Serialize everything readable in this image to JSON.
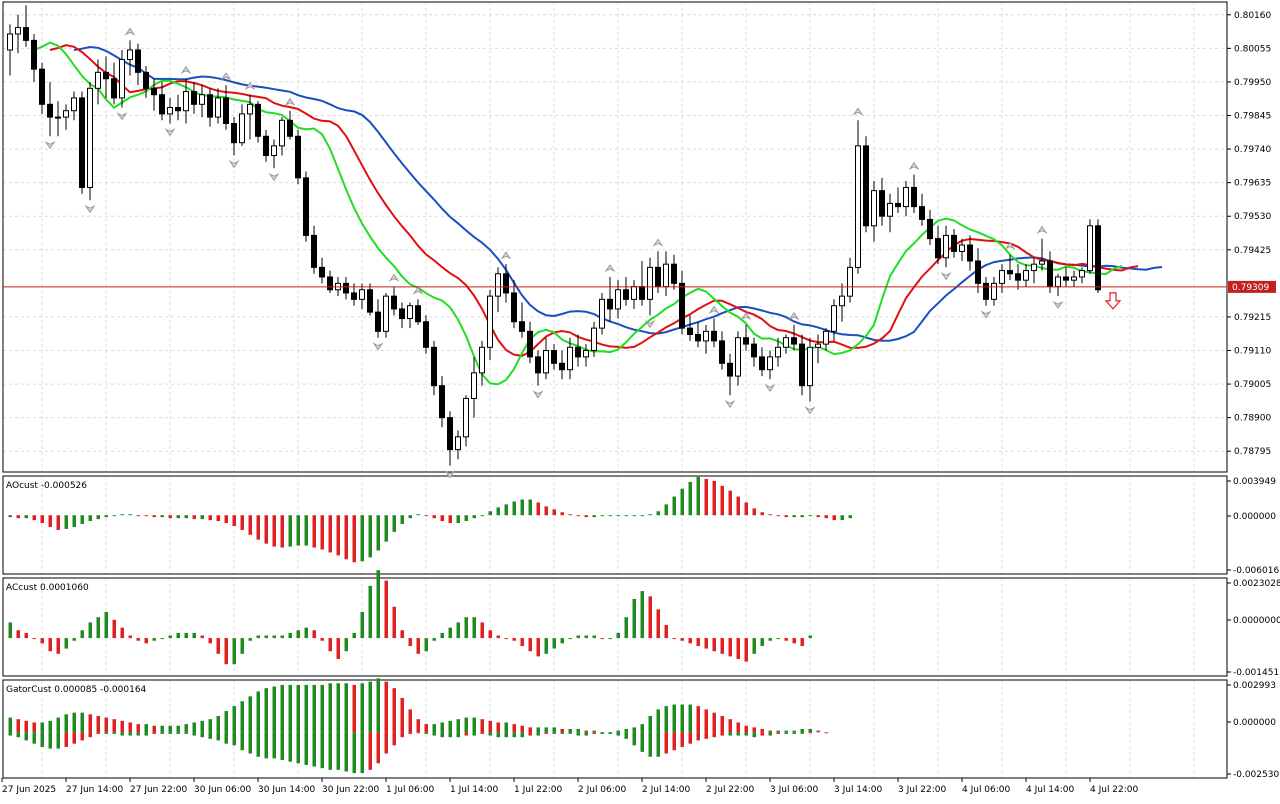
{
  "main": {
    "price_ticks": [
      "0.80160",
      "0.80055",
      "0.79950",
      "0.79845",
      "0.79740",
      "0.79635",
      "0.79530",
      "0.79425",
      "0.79215",
      "0.79110",
      "0.79005",
      "0.78900",
      "0.78795"
    ],
    "current_price_label": "0.79309",
    "signal_arrow": "down-arrow-icon"
  },
  "time_labels": [
    "27 Jun 2025",
    "27 Jun 14:00",
    "27 Jun 22:00",
    "30 Jun 06:00",
    "30 Jun 14:00",
    "30 Jun 22:00",
    "1 Jul 06:00",
    "1 Jul 14:00",
    "1 Jul 22:00",
    "2 Jul 06:00",
    "2 Jul 14:00",
    "2 Jul 22:00",
    "3 Jul 06:00",
    "3 Jul 14:00",
    "3 Jul 22:00",
    "4 Jul 06:00",
    "4 Jul 14:00",
    "4 Jul 22:00"
  ],
  "indicators": [
    {
      "label": "AOcust -0.000526",
      "ticks": [
        "0.003949",
        "0.000000",
        "-0.006016"
      ]
    },
    {
      "label": "ACcust 0.0001060",
      "ticks": [
        "0.0023028",
        "0.0000000",
        "-0.0014511"
      ]
    },
    {
      "label": "GatorCust 0.000085 -0.000164",
      "ticks": [
        "0.002993",
        "0.000000",
        "-0.002530"
      ]
    }
  ],
  "colors": {
    "grid": "#dcdcdc",
    "border": "#000000",
    "bull": "#ffffff",
    "bear": "#000000",
    "jaw": "#1a4fbf",
    "teeth": "#e01010",
    "lips": "#22dd22",
    "up_bar": "#1f8a1f",
    "down_bar": "#e02020",
    "price_line": "#c02020",
    "fractal": "#999999"
  },
  "chart_data": {
    "type": "candlestick",
    "instrument_digits": 5,
    "current_price": 0.79309,
    "price_range": [
      0.7873,
      0.802
    ],
    "candles_ohlc": [
      [
        0.8005,
        0.8013,
        0.7997,
        0.801
      ],
      [
        0.801,
        0.8016,
        0.8004,
        0.8012
      ],
      [
        0.8012,
        0.8019,
        0.8006,
        0.8008
      ],
      [
        0.8008,
        0.801,
        0.7995,
        0.7999
      ],
      [
        0.7999,
        0.8001,
        0.7985,
        0.7988
      ],
      [
        0.7988,
        0.7995,
        0.7978,
        0.7984
      ],
      [
        0.7984,
        0.7989,
        0.7978,
        0.7984
      ],
      [
        0.7984,
        0.7988,
        0.798,
        0.7986
      ],
      [
        0.7986,
        0.7992,
        0.7983,
        0.799
      ],
      [
        0.799,
        0.7992,
        0.796,
        0.7962
      ],
      [
        0.7962,
        0.7995,
        0.7958,
        0.7993
      ],
      [
        0.7993,
        0.8002,
        0.7988,
        0.7998
      ],
      [
        0.7998,
        0.8003,
        0.799,
        0.7996
      ],
      [
        0.7996,
        0.8001,
        0.7988,
        0.799
      ],
      [
        0.799,
        0.8005,
        0.7987,
        0.8002
      ],
      [
        0.8002,
        0.8008,
        0.7997,
        0.8005
      ],
      [
        0.8005,
        0.8007,
        0.7994,
        0.7998
      ],
      [
        0.7998,
        0.8,
        0.799,
        0.7993
      ],
      [
        0.7993,
        0.7996,
        0.7986,
        0.7991
      ],
      [
        0.7991,
        0.7995,
        0.7983,
        0.7985
      ],
      [
        0.7985,
        0.799,
        0.7982,
        0.7987
      ],
      [
        0.7987,
        0.7991,
        0.7983,
        0.7986
      ],
      [
        0.7986,
        0.7996,
        0.7982,
        0.7992
      ],
      [
        0.7992,
        0.7995,
        0.7985,
        0.7988
      ],
      [
        0.7988,
        0.7994,
        0.7984,
        0.7991
      ],
      [
        0.7991,
        0.7993,
        0.7981,
        0.7984
      ],
      [
        0.7984,
        0.7993,
        0.7982,
        0.799
      ],
      [
        0.799,
        0.7994,
        0.798,
        0.7982
      ],
      [
        0.7982,
        0.7984,
        0.7972,
        0.7976
      ],
      [
        0.7976,
        0.7988,
        0.7975,
        0.7985
      ],
      [
        0.7985,
        0.7991,
        0.7977,
        0.7988
      ],
      [
        0.7988,
        0.7989,
        0.7976,
        0.7978
      ],
      [
        0.7978,
        0.798,
        0.797,
        0.7972
      ],
      [
        0.7972,
        0.7977,
        0.7968,
        0.7975
      ],
      [
        0.7975,
        0.7984,
        0.7972,
        0.7983
      ],
      [
        0.7983,
        0.7986,
        0.7977,
        0.7978
      ],
      [
        0.7978,
        0.798,
        0.7963,
        0.7965
      ],
      [
        0.7965,
        0.7967,
        0.7945,
        0.7947
      ],
      [
        0.7947,
        0.795,
        0.7935,
        0.7937
      ],
      [
        0.7937,
        0.794,
        0.7932,
        0.7934
      ],
      [
        0.7934,
        0.7936,
        0.7929,
        0.793
      ],
      [
        0.793,
        0.7934,
        0.7928,
        0.7932
      ],
      [
        0.7932,
        0.7934,
        0.7927,
        0.7929
      ],
      [
        0.7929,
        0.7932,
        0.7925,
        0.7927
      ],
      [
        0.7927,
        0.7932,
        0.7924,
        0.793
      ],
      [
        0.793,
        0.7932,
        0.7922,
        0.7923
      ],
      [
        0.7923,
        0.7927,
        0.7915,
        0.7917
      ],
      [
        0.7917,
        0.7929,
        0.7915,
        0.7928
      ],
      [
        0.7928,
        0.7931,
        0.7922,
        0.7924
      ],
      [
        0.7924,
        0.7926,
        0.7918,
        0.7921
      ],
      [
        0.7921,
        0.7926,
        0.7918,
        0.7925
      ],
      [
        0.7925,
        0.7927,
        0.7919,
        0.792
      ],
      [
        0.792,
        0.7922,
        0.791,
        0.7912
      ],
      [
        0.7912,
        0.7914,
        0.7897,
        0.79
      ],
      [
        0.79,
        0.7903,
        0.7887,
        0.789
      ],
      [
        0.789,
        0.7892,
        0.7875,
        0.788
      ],
      [
        0.788,
        0.7886,
        0.7877,
        0.7884
      ],
      [
        0.7884,
        0.7897,
        0.7881,
        0.7896
      ],
      [
        0.7896,
        0.7909,
        0.789,
        0.7904
      ],
      [
        0.7904,
        0.7914,
        0.79,
        0.7912
      ],
      [
        0.7912,
        0.793,
        0.7908,
        0.7928
      ],
      [
        0.7928,
        0.7937,
        0.7923,
        0.7935
      ],
      [
        0.7935,
        0.7938,
        0.7926,
        0.7929
      ],
      [
        0.7929,
        0.7933,
        0.7918,
        0.792
      ],
      [
        0.792,
        0.7926,
        0.7915,
        0.7917
      ],
      [
        0.7917,
        0.792,
        0.7907,
        0.7909
      ],
      [
        0.7909,
        0.7911,
        0.79,
        0.7904
      ],
      [
        0.7904,
        0.7915,
        0.7902,
        0.7911
      ],
      [
        0.7911,
        0.7913,
        0.7905,
        0.7907
      ],
      [
        0.7907,
        0.7911,
        0.7902,
        0.7905
      ],
      [
        0.7905,
        0.7915,
        0.7902,
        0.7912
      ],
      [
        0.7912,
        0.7916,
        0.7906,
        0.7909
      ],
      [
        0.7909,
        0.7913,
        0.7906,
        0.7911
      ],
      [
        0.7911,
        0.792,
        0.7909,
        0.7918
      ],
      [
        0.7918,
        0.7929,
        0.7916,
        0.7927
      ],
      [
        0.7927,
        0.7934,
        0.792,
        0.7924
      ],
      [
        0.7924,
        0.7933,
        0.7921,
        0.793
      ],
      [
        0.793,
        0.7934,
        0.7925,
        0.7927
      ],
      [
        0.7927,
        0.7933,
        0.7924,
        0.7931
      ],
      [
        0.7931,
        0.7939,
        0.7925,
        0.7927
      ],
      [
        0.7927,
        0.794,
        0.7922,
        0.7937
      ],
      [
        0.7937,
        0.7942,
        0.7929,
        0.7931
      ],
      [
        0.7931,
        0.7942,
        0.7928,
        0.7938
      ],
      [
        0.7938,
        0.7941,
        0.793,
        0.7932
      ],
      [
        0.7932,
        0.7936,
        0.7916,
        0.7918
      ],
      [
        0.7918,
        0.7922,
        0.7914,
        0.7916
      ],
      [
        0.7916,
        0.792,
        0.7912,
        0.7914
      ],
      [
        0.7914,
        0.7919,
        0.791,
        0.7917
      ],
      [
        0.7917,
        0.7921,
        0.7912,
        0.7914
      ],
      [
        0.7914,
        0.7917,
        0.7905,
        0.7907
      ],
      [
        0.7907,
        0.791,
        0.7897,
        0.7903
      ],
      [
        0.7903,
        0.7917,
        0.79,
        0.7915
      ],
      [
        0.7915,
        0.7919,
        0.7911,
        0.7913
      ],
      [
        0.7913,
        0.7915,
        0.7906,
        0.7909
      ],
      [
        0.7909,
        0.7912,
        0.7903,
        0.7905
      ],
      [
        0.7905,
        0.7911,
        0.7902,
        0.7909
      ],
      [
        0.7909,
        0.7915,
        0.7906,
        0.7912
      ],
      [
        0.7912,
        0.7916,
        0.791,
        0.7915
      ],
      [
        0.7915,
        0.7919,
        0.7911,
        0.7913
      ],
      [
        0.7913,
        0.7916,
        0.7897,
        0.79
      ],
      [
        0.79,
        0.7915,
        0.7895,
        0.7912
      ],
      [
        0.7912,
        0.7916,
        0.7907,
        0.7913
      ],
      [
        0.7913,
        0.7918,
        0.7911,
        0.7917
      ],
      [
        0.7917,
        0.7927,
        0.7914,
        0.7925
      ],
      [
        0.7925,
        0.7932,
        0.792,
        0.7928
      ],
      [
        0.7928,
        0.794,
        0.7926,
        0.7937
      ],
      [
        0.7937,
        0.7983,
        0.7935,
        0.7975
      ],
      [
        0.7975,
        0.7978,
        0.7948,
        0.795
      ],
      [
        0.795,
        0.7964,
        0.7945,
        0.7961
      ],
      [
        0.7961,
        0.7965,
        0.795,
        0.7953
      ],
      [
        0.7953,
        0.796,
        0.7948,
        0.7957
      ],
      [
        0.7957,
        0.7962,
        0.7954,
        0.7956
      ],
      [
        0.7956,
        0.7964,
        0.7953,
        0.7962
      ],
      [
        0.7962,
        0.7966,
        0.7954,
        0.7956
      ],
      [
        0.7956,
        0.796,
        0.795,
        0.7952
      ],
      [
        0.7952,
        0.7955,
        0.7944,
        0.7946
      ],
      [
        0.7946,
        0.795,
        0.7938,
        0.794
      ],
      [
        0.794,
        0.795,
        0.7937,
        0.7947
      ],
      [
        0.7947,
        0.7949,
        0.794,
        0.7942
      ],
      [
        0.7942,
        0.7946,
        0.7939,
        0.7944
      ],
      [
        0.7944,
        0.7947,
        0.7936,
        0.7939
      ],
      [
        0.7939,
        0.7943,
        0.7929,
        0.7932
      ],
      [
        0.7932,
        0.7934,
        0.7925,
        0.7927
      ],
      [
        0.7927,
        0.7934,
        0.7925,
        0.7932
      ],
      [
        0.7932,
        0.7938,
        0.7929,
        0.7936
      ],
      [
        0.7936,
        0.7941,
        0.7933,
        0.7935
      ],
      [
        0.7935,
        0.7938,
        0.793,
        0.7933
      ],
      [
        0.7933,
        0.7938,
        0.7931,
        0.7936
      ],
      [
        0.7936,
        0.794,
        0.7932,
        0.7938
      ],
      [
        0.7938,
        0.7946,
        0.7936,
        0.7939
      ],
      [
        0.7939,
        0.7942,
        0.7929,
        0.7931
      ],
      [
        0.7931,
        0.7935,
        0.7928,
        0.7934
      ],
      [
        0.7934,
        0.7937,
        0.7931,
        0.7933
      ],
      [
        0.7933,
        0.7936,
        0.7931,
        0.7934
      ],
      [
        0.7934,
        0.7937,
        0.7932,
        0.7936
      ],
      [
        0.7936,
        0.7952,
        0.7935,
        0.795
      ],
      [
        0.795,
        0.7952,
        0.7929,
        0.793
      ]
    ],
    "ao_values": [
      -0.0002,
      -0.0003,
      -0.0003,
      -0.0005,
      -0.0008,
      -0.0012,
      -0.0015,
      -0.0014,
      -0.0012,
      -0.0009,
      -0.0006,
      -0.0004,
      -0.0002,
      -0.0001,
      0.0001,
      0.0001,
      0.0,
      -0.0001,
      -0.0002,
      -0.0002,
      -0.0003,
      -0.0003,
      -0.0003,
      -0.0004,
      -0.0004,
      -0.0005,
      -0.0006,
      -0.0008,
      -0.0011,
      -0.0015,
      -0.002,
      -0.0025,
      -0.0029,
      -0.0032,
      -0.0033,
      -0.0032,
      -0.0031,
      -0.0031,
      -0.0033,
      -0.0035,
      -0.0038,
      -0.0041,
      -0.0045,
      -0.0048,
      -0.0047,
      -0.0043,
      -0.0036,
      -0.0027,
      -0.0017,
      -0.0009,
      -0.0003,
      0.0001,
      0.0,
      -0.0003,
      -0.0006,
      -0.0008,
      -0.0008,
      -0.0006,
      -0.0003,
      0.0,
      0.0004,
      0.0008,
      0.0011,
      0.0014,
      0.0016,
      0.0016,
      0.0013,
      0.0009,
      0.0006,
      0.0003,
      0.0001,
      -0.0001,
      -0.0002,
      -0.0002,
      -0.0001,
      -0.0001,
      -0.0001,
      -0.0001,
      0.0,
      0.0,
      0.0001,
      0.0004,
      0.0011,
      0.0019,
      0.0027,
      0.0034,
      0.0039,
      0.0037,
      0.0035,
      0.003,
      0.0025,
      0.0019,
      0.0013,
      0.0007,
      0.0003,
      0.0001,
      -0.0001,
      -0.0002,
      -0.0002,
      -0.0002,
      -0.0001,
      -0.0002,
      -0.0003,
      -0.0005,
      -0.0005,
      -0.0003
    ],
    "ac_values": [
      0.0006,
      0.0003,
      0.0002,
      0.0,
      -0.0002,
      -0.0005,
      -0.0006,
      -0.0004,
      -0.0001,
      0.0003,
      0.0006,
      0.0008,
      0.001,
      0.0007,
      0.0004,
      0.0001,
      -0.0001,
      -0.0002,
      -0.0001,
      0.0,
      0.0001,
      0.0002,
      0.0002,
      0.0002,
      0.0001,
      -0.0002,
      -0.0006,
      -0.001,
      -0.001,
      -0.0006,
      -0.0001,
      0.0001,
      0.0001,
      0.0001,
      0.0001,
      0.0002,
      0.0003,
      0.0004,
      0.0003,
      -0.0001,
      -0.0005,
      -0.0008,
      -0.0005,
      0.0002,
      0.001,
      0.002,
      0.0026,
      0.0022,
      0.0012,
      0.0003,
      -0.0003,
      -0.0006,
      -0.0005,
      -0.0001,
      0.0002,
      0.0004,
      0.0006,
      0.0008,
      0.0008,
      0.0006,
      0.0003,
      0.0001,
      0.0,
      -0.0001,
      -0.0003,
      -0.0005,
      -0.0007,
      -0.0006,
      -0.0004,
      -0.0002,
      0.0,
      0.0001,
      0.0001,
      0.0001,
      0.0,
      0.0,
      0.0002,
      0.0008,
      0.0015,
      0.0018,
      0.0016,
      0.0011,
      0.0005,
      0.0,
      -0.0001,
      -0.0002,
      -0.0003,
      -0.0004,
      -0.0005,
      -0.0006,
      -0.0007,
      -0.0008,
      -0.0009,
      -0.0006,
      -0.0003,
      -0.0001,
      0.0,
      -0.0001,
      -0.0002,
      -0.0003,
      0.0001
    ],
    "gator_upper": [
      0.0009,
      0.0008,
      0.0007,
      0.0006,
      0.0006,
      0.0007,
      0.0009,
      0.0011,
      0.0012,
      0.0012,
      0.0011,
      0.001,
      0.0009,
      0.0008,
      0.0007,
      0.0006,
      0.0005,
      0.0005,
      0.0004,
      0.0004,
      0.0004,
      0.0004,
      0.0005,
      0.0006,
      0.0007,
      0.0008,
      0.001,
      0.0013,
      0.0016,
      0.0019,
      0.0022,
      0.0025,
      0.0027,
      0.0028,
      0.0029,
      0.0029,
      0.0029,
      0.0029,
      0.0029,
      0.0029,
      0.003,
      0.003,
      0.003,
      0.0029,
      0.003,
      0.0031,
      0.0033,
      0.0031,
      0.0027,
      0.0021,
      0.0014,
      0.0008,
      0.0005,
      0.0005,
      0.0006,
      0.0007,
      0.0008,
      0.0009,
      0.0009,
      0.0008,
      0.0007,
      0.0006,
      0.0006,
      0.0005,
      0.0004,
      0.0003,
      0.0003,
      0.0003,
      0.0003,
      0.0002,
      0.0002,
      0.0002,
      0.0001,
      0.0001,
      0.0,
      0.0,
      0.0001,
      0.0002,
      0.0003,
      0.0005,
      0.001,
      0.0014,
      0.0016,
      0.0017,
      0.0017,
      0.0017,
      0.0016,
      0.0014,
      0.0012,
      0.001,
      0.0008,
      0.0006,
      0.0004,
      0.0003,
      0.0002,
      0.0001,
      0.0001,
      0.0001,
      0.0001,
      0.0002,
      0.0002,
      0.0001,
      0.0
    ],
    "gator_lower": [
      -0.0002,
      -0.0003,
      -0.0005,
      -0.0007,
      -0.0009,
      -0.001,
      -0.001,
      -0.0009,
      -0.0007,
      -0.0005,
      -0.0003,
      -0.0001,
      -0.0001,
      -0.0001,
      -0.0002,
      -0.0002,
      -0.0002,
      -0.0002,
      -0.0001,
      -0.0001,
      -0.0001,
      -0.0001,
      -0.0001,
      -0.0002,
      -0.0003,
      -0.0004,
      -0.0005,
      -0.0007,
      -0.0008,
      -0.0011,
      -0.0013,
      -0.0015,
      -0.0016,
      -0.0016,
      -0.0017,
      -0.0018,
      -0.0019,
      -0.002,
      -0.0021,
      -0.0022,
      -0.0023,
      -0.0023,
      -0.0024,
      -0.0025,
      -0.0025,
      -0.0023,
      -0.0019,
      -0.0013,
      -0.0008,
      -0.0003,
      -0.0001,
      0.0,
      -0.0001,
      -0.0002,
      -0.0003,
      -0.0003,
      -0.0003,
      -0.0002,
      -0.0002,
      -0.0001,
      -0.0002,
      -0.0003,
      -0.0003,
      -0.0003,
      -0.0003,
      -0.0002,
      -0.0002,
      -0.0001,
      -0.0001,
      -0.0001,
      -0.0001,
      -0.0002,
      -0.0002,
      -0.0001,
      -0.0001,
      -0.0001,
      -0.0002,
      -0.0004,
      -0.0008,
      -0.0012,
      -0.0015,
      -0.0015,
      -0.0013,
      -0.0011,
      -0.0009,
      -0.0007,
      -0.0005,
      -0.0004,
      -0.0003,
      -0.0002,
      -0.0002,
      -0.0002,
      -0.0002,
      -0.0003,
      -0.0002,
      -0.0002,
      -0.0001,
      -0.0001,
      -0.0001,
      -0.0001,
      0.0
    ]
  }
}
